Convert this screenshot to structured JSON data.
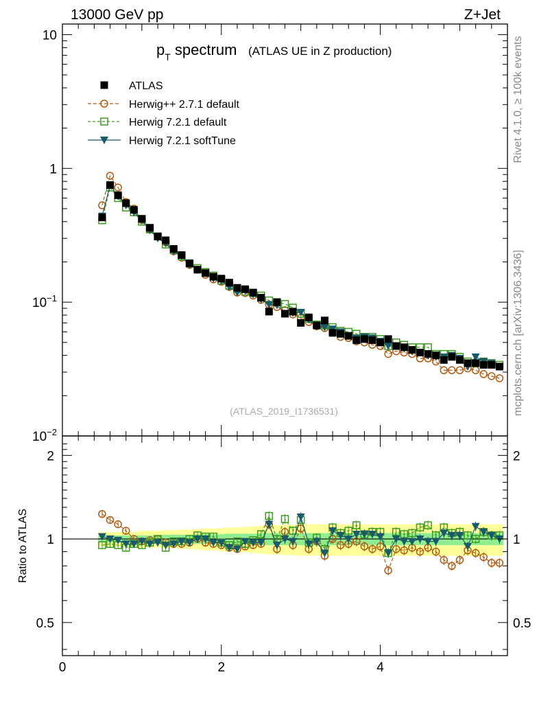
{
  "header": {
    "energy": "13000 GeV pp",
    "process": "Z+Jet"
  },
  "side_labels": {
    "rivet": "Rivet 4.1.0, ≥ 100k events",
    "mcplots": "mcplots.cern.ch [arXiv:1306.3436]"
  },
  "colors": {
    "atlas": "#000000",
    "herwigpp": "#b05a10",
    "herwig721": "#3d9a1f",
    "softtune": "#1a5a6a",
    "band_yellow": "#ffff99",
    "band_green": "#90ee90"
  },
  "chart_data": {
    "type": "scatter",
    "title_main": "p",
    "title_sub": "T",
    "title_rest": " spectrum",
    "title_extra": "(ATLAS UE in Z production)",
    "watermark": "(ATLAS_2019_I1736531)",
    "xlabel": "",
    "ylabel_ratio": "Ratio to ATLAS",
    "xlim": [
      0,
      5.6
    ],
    "ylim_main": [
      0.01,
      12
    ],
    "ylim_ratio": [
      0.38,
      2.35
    ],
    "x_ticks": [
      "0",
      "2",
      "4"
    ],
    "y_ticks_main": [
      {
        "base": "10",
        "exp": ""
      },
      {
        "base": "1",
        "exp": ""
      },
      {
        "base": "10",
        "exp": "−1"
      },
      {
        "base": "10",
        "exp": "−2"
      }
    ],
    "y_ticks_ratio": [
      "2",
      "1",
      "0.5"
    ],
    "x": [
      0.5,
      0.6,
      0.7,
      0.8,
      0.9,
      1.0,
      1.1,
      1.2,
      1.3,
      1.4,
      1.5,
      1.6,
      1.7,
      1.8,
      1.9,
      2.0,
      2.1,
      2.2,
      2.3,
      2.4,
      2.5,
      2.6,
      2.7,
      2.8,
      2.9,
      3.0,
      3.1,
      3.2,
      3.3,
      3.4,
      3.5,
      3.6,
      3.7,
      3.8,
      3.9,
      4.0,
      4.1,
      4.2,
      4.3,
      4.4,
      4.5,
      4.6,
      4.7,
      4.8,
      4.9,
      5.0,
      5.1,
      5.2,
      5.3,
      5.4,
      5.5
    ],
    "atlas": [
      0.43,
      0.75,
      0.63,
      0.55,
      0.49,
      0.42,
      0.36,
      0.31,
      0.29,
      0.25,
      0.225,
      0.195,
      0.175,
      0.165,
      0.155,
      0.15,
      0.14,
      0.128,
      0.125,
      0.118,
      0.108,
      0.085,
      0.1,
      0.082,
      0.085,
      0.07,
      0.077,
      0.067,
      0.073,
      0.059,
      0.058,
      0.056,
      0.052,
      0.053,
      0.052,
      0.05,
      0.053,
      0.047,
      0.046,
      0.044,
      0.042,
      0.041,
      0.04,
      0.037,
      0.039,
      0.037,
      0.035,
      0.035,
      0.034,
      0.034,
      0.033
    ],
    "series": [
      {
        "name": "ATLAS",
        "key": "atlas",
        "marker": "square-filled"
      },
      {
        "name": "Herwig++ 2.7.1 default",
        "key": "herwigpp",
        "marker": "circle-open",
        "dash": "5,3",
        "values": [
          0.53,
          0.88,
          0.72,
          0.56,
          0.5,
          0.41,
          0.35,
          0.31,
          0.28,
          0.24,
          0.215,
          0.19,
          0.175,
          0.16,
          0.148,
          0.142,
          0.13,
          0.118,
          0.117,
          0.112,
          0.104,
          0.096,
          0.092,
          0.087,
          0.081,
          0.076,
          0.071,
          0.066,
          0.064,
          0.059,
          0.055,
          0.054,
          0.051,
          0.05,
          0.048,
          0.047,
          0.041,
          0.043,
          0.042,
          0.041,
          0.038,
          0.038,
          0.036,
          0.031,
          0.031,
          0.031,
          0.032,
          0.031,
          0.029,
          0.028,
          0.027
        ]
      },
      {
        "name": "Herwig 7.2.1 default",
        "key": "herwig721",
        "marker": "square-open",
        "dash": "4,3",
        "values": [
          0.41,
          0.72,
          0.6,
          0.51,
          0.47,
          0.4,
          0.35,
          0.31,
          0.27,
          0.245,
          0.22,
          0.195,
          0.18,
          0.168,
          0.158,
          0.145,
          0.133,
          0.125,
          0.12,
          0.117,
          0.112,
          0.103,
          0.1,
          0.097,
          0.091,
          0.082,
          0.075,
          0.068,
          0.067,
          0.065,
          0.061,
          0.06,
          0.058,
          0.055,
          0.055,
          0.053,
          0.047,
          0.05,
          0.048,
          0.046,
          0.046,
          0.046,
          0.041,
          0.041,
          0.041,
          0.039,
          0.036,
          0.035,
          0.036,
          0.035,
          0.034
        ]
      },
      {
        "name": "Herwig 7.2.1 softTune",
        "key": "softtune",
        "marker": "triangle-down",
        "dash": "",
        "values": [
          0.44,
          0.75,
          0.62,
          0.53,
          0.47,
          0.41,
          0.345,
          0.3,
          0.275,
          0.24,
          0.22,
          0.19,
          0.175,
          0.165,
          0.15,
          0.145,
          0.13,
          0.118,
          0.122,
          0.114,
          0.105,
          0.096,
          0.095,
          0.082,
          0.083,
          0.084,
          0.074,
          0.066,
          0.065,
          0.063,
          0.06,
          0.056,
          0.054,
          0.055,
          0.054,
          0.051,
          0.047,
          0.047,
          0.045,
          0.043,
          0.042,
          0.04,
          0.039,
          0.039,
          0.04,
          0.038,
          0.033,
          0.039,
          0.036,
          0.035,
          0.033
        ]
      }
    ],
    "ratio": {
      "herwigpp": [
        1.23,
        1.17,
        1.13,
        1.07,
        1.0,
        0.98,
        0.99,
        1.0,
        0.97,
        0.96,
        0.96,
        0.97,
        1.0,
        0.97,
        0.96,
        0.95,
        0.93,
        0.92,
        0.94,
        0.95,
        0.96,
        1.13,
        0.92,
        1.06,
        0.95,
        1.09,
        0.92,
        0.98,
        0.87,
        1.0,
        0.95,
        0.96,
        0.98,
        0.94,
        0.92,
        0.94,
        0.77,
        0.92,
        0.91,
        0.93,
        0.9,
        0.93,
        0.9,
        0.84,
        0.8,
        0.84,
        0.91,
        0.89,
        0.86,
        0.82,
        0.82
      ],
      "herwig721": [
        0.95,
        0.96,
        0.95,
        0.93,
        0.96,
        0.95,
        0.97,
        1.0,
        0.93,
        0.98,
        0.98,
        1.0,
        1.03,
        1.02,
        1.02,
        0.97,
        0.95,
        0.98,
        0.96,
        0.99,
        1.04,
        1.21,
        1.0,
        1.18,
        1.07,
        1.17,
        0.97,
        1.01,
        0.92,
        1.1,
        1.05,
        1.07,
        1.12,
        1.04,
        1.06,
        1.06,
        0.89,
        1.06,
        1.04,
        1.05,
        1.1,
        1.12,
        1.03,
        1.1,
        1.05,
        1.06,
        1.03,
        1.0,
        1.06,
        1.03,
        1.03
      ],
      "softtune": [
        1.02,
        1.0,
        0.99,
        0.96,
        0.96,
        0.98,
        0.96,
        0.97,
        0.95,
        0.96,
        0.98,
        0.97,
        1.0,
        1.0,
        0.97,
        0.97,
        0.93,
        0.92,
        0.98,
        0.97,
        0.97,
        1.13,
        0.95,
        1.0,
        0.98,
        1.2,
        0.96,
        0.98,
        0.89,
        1.07,
        1.03,
        1.0,
        1.04,
        1.04,
        1.04,
        1.02,
        0.89,
        1.0,
        0.98,
        0.98,
        1.0,
        0.98,
        0.98,
        1.05,
        1.03,
        1.03,
        0.94,
        1.11,
        1.06,
        1.03,
        1.0
      ]
    },
    "band": {
      "green_frac": [
        0.03,
        0.03,
        0.03,
        0.03,
        0.03,
        0.03,
        0.03,
        0.03,
        0.035,
        0.035,
        0.035,
        0.035,
        0.04,
        0.04,
        0.04,
        0.04,
        0.045,
        0.045,
        0.045,
        0.045,
        0.05,
        0.05,
        0.05,
        0.05,
        0.05,
        0.05,
        0.05,
        0.05,
        0.05,
        0.05,
        0.05,
        0.05,
        0.05,
        0.05,
        0.05,
        0.05,
        0.05,
        0.05,
        0.05,
        0.05,
        0.05,
        0.05,
        0.05,
        0.05,
        0.05,
        0.05,
        0.05,
        0.05,
        0.05,
        0.05,
        0.05
      ],
      "yellow_frac": [
        0.06,
        0.06,
        0.06,
        0.06,
        0.06,
        0.07,
        0.07,
        0.07,
        0.075,
        0.075,
        0.08,
        0.08,
        0.085,
        0.09,
        0.09,
        0.095,
        0.1,
        0.1,
        0.105,
        0.11,
        0.115,
        0.12,
        0.12,
        0.125,
        0.125,
        0.13,
        0.13,
        0.13,
        0.13,
        0.13,
        0.13,
        0.13,
        0.13,
        0.13,
        0.13,
        0.13,
        0.13,
        0.13,
        0.13,
        0.13,
        0.13,
        0.13,
        0.13,
        0.13,
        0.13,
        0.13,
        0.13,
        0.13,
        0.13,
        0.13,
        0.13
      ]
    },
    "legend_position": "top-left"
  }
}
